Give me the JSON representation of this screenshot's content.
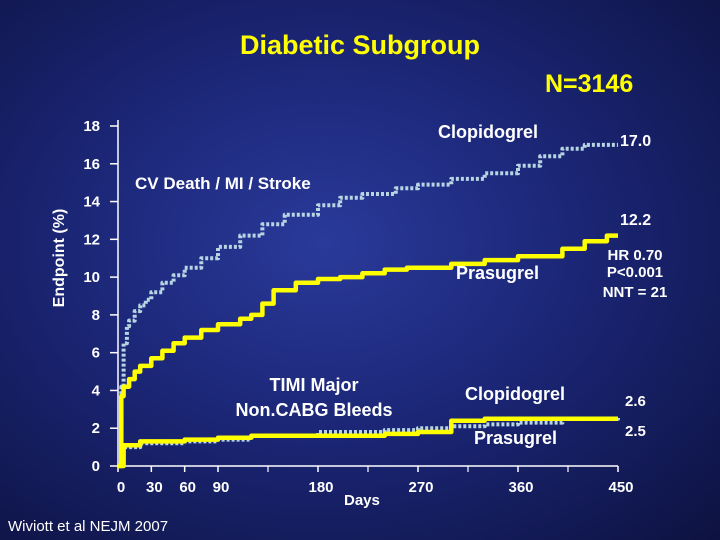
{
  "slide": {
    "title": "Diabetic Subgroup",
    "n_label": "N=3146",
    "citation": "Wiviott et al NEJM 2007"
  },
  "colors": {
    "clopidogrel": "#b7d4e3",
    "prasugrel": "#ffff00",
    "text": "#ffffff",
    "title": "#ffff00"
  },
  "chart_data": {
    "type": "line",
    "title": "Diabetic Subgroup",
    "xlabel": "Days",
    "ylabel": "Endpoint (%)",
    "xlim": [
      0,
      450
    ],
    "ylim": [
      0,
      18
    ],
    "x_ticks": [
      0,
      30,
      60,
      90,
      180,
      270,
      360,
      450
    ],
    "y_ticks": [
      0,
      2,
      4,
      6,
      8,
      10,
      12,
      14,
      16,
      18
    ],
    "series": [
      {
        "name": "Clopidogrel",
        "endpoint": "CV Death / MI / Stroke",
        "style": "dotted",
        "x": [
          0,
          3,
          5,
          8,
          10,
          15,
          20,
          25,
          30,
          40,
          50,
          60,
          75,
          90,
          110,
          130,
          150,
          180,
          200,
          220,
          250,
          270,
          300,
          330,
          360,
          380,
          400,
          420,
          440,
          450
        ],
        "y": [
          0,
          4.2,
          6.5,
          7.4,
          7.7,
          8.2,
          8.5,
          8.8,
          9.2,
          9.7,
          10.1,
          10.5,
          11.0,
          11.6,
          12.2,
          12.8,
          13.3,
          13.8,
          14.2,
          14.4,
          14.7,
          14.9,
          15.2,
          15.5,
          15.9,
          16.4,
          16.8,
          17.0,
          17.0,
          17.0
        ]
      },
      {
        "name": "Prasugrel",
        "endpoint": "CV Death / MI / Stroke",
        "style": "solid",
        "x": [
          0,
          3,
          5,
          10,
          15,
          20,
          30,
          40,
          50,
          60,
          75,
          90,
          110,
          120,
          130,
          140,
          160,
          180,
          200,
          220,
          240,
          260,
          270,
          300,
          330,
          360,
          400,
          420,
          440,
          450
        ],
        "y": [
          0,
          3.7,
          4.2,
          4.6,
          5.0,
          5.3,
          5.7,
          6.1,
          6.5,
          6.8,
          7.2,
          7.5,
          7.8,
          8.0,
          8.6,
          9.3,
          9.7,
          9.9,
          10.0,
          10.2,
          10.4,
          10.5,
          10.5,
          10.7,
          10.9,
          11.1,
          11.5,
          11.9,
          12.2,
          12.2
        ]
      },
      {
        "name": "Clopidogrel",
        "endpoint": "TIMI Major Non.CABG Bleeds",
        "style": "dotted",
        "x": [
          0,
          5,
          20,
          60,
          90,
          120,
          180,
          240,
          270,
          300,
          330,
          360,
          400,
          450
        ],
        "y": [
          0,
          1.0,
          1.2,
          1.3,
          1.4,
          1.6,
          1.8,
          1.9,
          2.0,
          2.1,
          2.2,
          2.3,
          2.5,
          2.6
        ]
      },
      {
        "name": "Prasugrel",
        "endpoint": "TIMI Major Non.CABG Bleeds",
        "style": "solid",
        "x": [
          0,
          5,
          20,
          60,
          90,
          120,
          180,
          240,
          270,
          300,
          330,
          360,
          400,
          450
        ],
        "y": [
          0,
          1.1,
          1.3,
          1.4,
          1.5,
          1.6,
          1.6,
          1.7,
          1.8,
          2.4,
          2.5,
          2.5,
          2.5,
          2.5
        ]
      }
    ],
    "annotations": {
      "label_clopidogrel_top": "Clopidogrel",
      "value_clopidogrel_top": "17.0",
      "endpoint_top": "CV Death / MI / Stroke",
      "value_prasugrel_top": "12.2",
      "label_prasugrel_top": "Prasugrel",
      "hr_line1": "HR 0.70",
      "hr_line2": "P<0.001",
      "hr_line3": "NNT = 21",
      "bleed_line1": "TIMI Major",
      "bleed_line2": "Non.CABG Bleeds",
      "label_clopidogrel_bottom": "Clopidogrel",
      "value_clopidogrel_bottom": "2.6",
      "label_prasugrel_bottom": "Prasugrel",
      "value_prasugrel_bottom": "2.5"
    }
  }
}
